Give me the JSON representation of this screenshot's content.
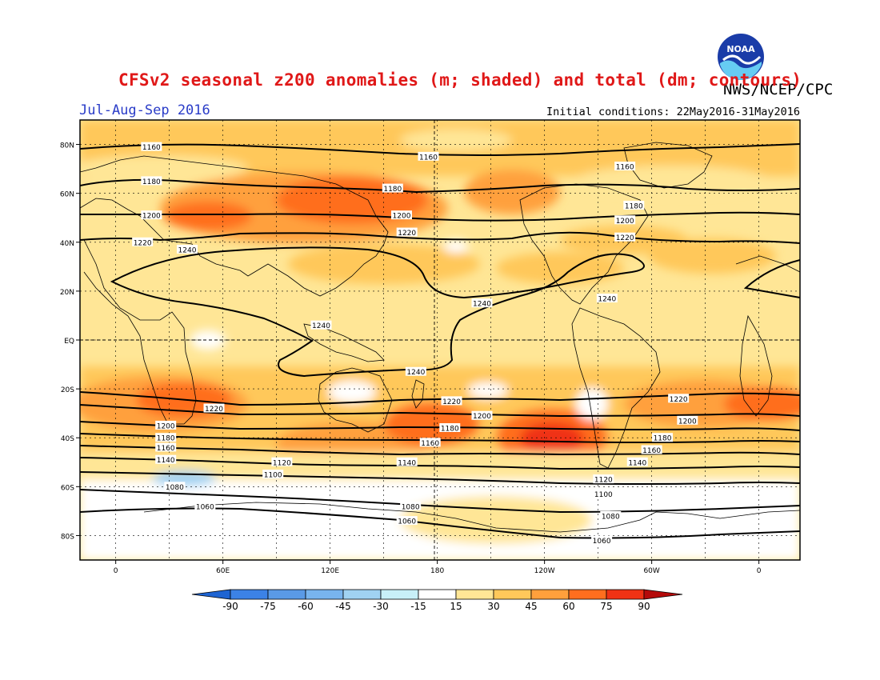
{
  "header": {
    "title": "CFSv2 seasonal z200 anomalies (m; shaded) and total (dm; contours)",
    "agency": "NWS/NCEP/CPC",
    "season": "Jul-Aug-Sep 2016",
    "initial_conditions": "Initial conditions: 22May2016-31May2016",
    "logo_text": "NOAA"
  },
  "axes": {
    "lat_labels": [
      "80N",
      "60N",
      "40N",
      "20N",
      "EQ",
      "20S",
      "40S",
      "60S",
      "80S"
    ],
    "lat_values": [
      80,
      60,
      40,
      20,
      0,
      -20,
      -40,
      -60,
      -80
    ],
    "lon_labels": [
      "0",
      "60E",
      "120E",
      "180",
      "120W",
      "60W",
      "0"
    ],
    "lon_values": [
      0,
      60,
      120,
      180,
      240,
      300,
      360
    ]
  },
  "legend": {
    "tick_labels": [
      "-90",
      "-75",
      "-60",
      "-45",
      "-30",
      "-15",
      "15",
      "30",
      "45",
      "60",
      "75",
      "90"
    ],
    "colors": [
      "#1e64d2",
      "#3c82e6",
      "#5a9ae6",
      "#78b4ee",
      "#a0d2f2",
      "#c8f0f8",
      "#ffffff",
      "#ffe696",
      "#ffc85a",
      "#ffa03c",
      "#ff6e1e",
      "#f03214",
      "#b40a0a"
    ]
  },
  "contours": [
    {
      "label": "1160",
      "lat": 77
    },
    {
      "label": "1180",
      "lat": 65
    },
    {
      "label": "1200",
      "lat": 53
    },
    {
      "label": "1220",
      "lat": 41
    },
    {
      "label": "1240",
      "lat": 24
    },
    {
      "label": "1220",
      "lat": -28
    },
    {
      "label": "1200",
      "lat": -35
    },
    {
      "label": "1180",
      "lat": -40
    },
    {
      "label": "1160",
      "lat": -44
    },
    {
      "label": "1140",
      "lat": -49
    },
    {
      "label": "1120",
      "lat": -54
    },
    {
      "label": "1100",
      "lat": -58
    },
    {
      "label": "1080",
      "lat": -65
    },
    {
      "label": "1060",
      "lat": -73
    }
  ],
  "contour_labels": [
    {
      "text": "1160",
      "lon": 20,
      "lat": 79
    },
    {
      "text": "1160",
      "lon": 175,
      "lat": 75
    },
    {
      "text": "1160",
      "lon": 285,
      "lat": 71
    },
    {
      "text": "1180",
      "lon": 20,
      "lat": 65
    },
    {
      "text": "1180",
      "lon": 155,
      "lat": 62
    },
    {
      "text": "1180",
      "lon": 290,
      "lat": 55
    },
    {
      "text": "1200",
      "lon": 20,
      "lat": 51
    },
    {
      "text": "1200",
      "lon": 160,
      "lat": 51
    },
    {
      "text": "1200",
      "lon": 285,
      "lat": 49
    },
    {
      "text": "1220",
      "lon": 15,
      "lat": 40
    },
    {
      "text": "1220",
      "lon": 163,
      "lat": 44
    },
    {
      "text": "1220",
      "lon": 285,
      "lat": 42
    },
    {
      "text": "1240",
      "lon": 40,
      "lat": 37
    },
    {
      "text": "1240",
      "lon": 205,
      "lat": 15
    },
    {
      "text": "1240",
      "lon": 275,
      "lat": 17
    },
    {
      "text": "1240",
      "lon": 115,
      "lat": 6
    },
    {
      "text": "1240",
      "lon": 168,
      "lat": -13
    },
    {
      "text": "1220",
      "lon": 55,
      "lat": -28
    },
    {
      "text": "1220",
      "lon": 188,
      "lat": -25
    },
    {
      "text": "1220",
      "lon": 315,
      "lat": -24
    },
    {
      "text": "1200",
      "lon": 28,
      "lat": -35
    },
    {
      "text": "1200",
      "lon": 205,
      "lat": -31
    },
    {
      "text": "1200",
      "lon": 320,
      "lat": -33
    },
    {
      "text": "1180",
      "lon": 28,
      "lat": -40
    },
    {
      "text": "1180",
      "lon": 187,
      "lat": -36
    },
    {
      "text": "1180",
      "lon": 306,
      "lat": -40
    },
    {
      "text": "1160",
      "lon": 28,
      "lat": -44
    },
    {
      "text": "1160",
      "lon": 176,
      "lat": -42
    },
    {
      "text": "1160",
      "lon": 300,
      "lat": -45
    },
    {
      "text": "1140",
      "lon": 28,
      "lat": -49
    },
    {
      "text": "1140",
      "lon": 163,
      "lat": -50
    },
    {
      "text": "1140",
      "lon": 292,
      "lat": -50
    },
    {
      "text": "1120",
      "lon": 93,
      "lat": -50
    },
    {
      "text": "1120",
      "lon": 273,
      "lat": -57
    },
    {
      "text": "1100",
      "lon": 88,
      "lat": -55
    },
    {
      "text": "1100",
      "lon": 273,
      "lat": -63
    },
    {
      "text": "1080",
      "lon": 33,
      "lat": -60
    },
    {
      "text": "1080",
      "lon": 165,
      "lat": -68
    },
    {
      "text": "1080",
      "lon": 277,
      "lat": -72
    },
    {
      "text": "1060",
      "lon": 50,
      "lat": -68
    },
    {
      "text": "1060",
      "lon": 163,
      "lat": -74
    },
    {
      "text": "1060",
      "lon": 272,
      "lat": -82
    }
  ]
}
